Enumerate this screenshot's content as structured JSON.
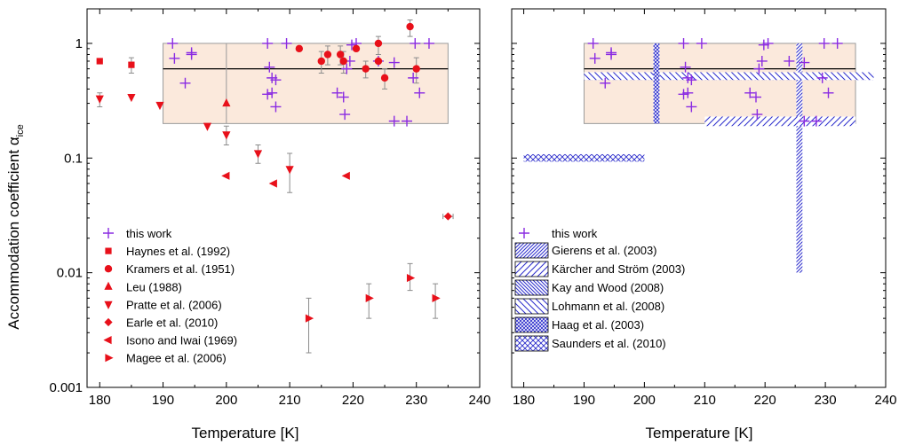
{
  "chart_data": [
    {
      "type": "scatter",
      "panel": "left",
      "xlabel": "Temperature [K]",
      "ylabel": "Accommodation coefficient α_ice",
      "ylabel_main": "Accommodation coefficient α",
      "ylabel_sub": "ice",
      "xlim": [
        178,
        240
      ],
      "ylim": [
        0.001,
        2
      ],
      "yscale": "log",
      "xticks": [
        "180",
        "190",
        "200",
        "210",
        "220",
        "230",
        "240"
      ],
      "yticks": [
        "0.001",
        "0.01",
        "0.1",
        "1"
      ],
      "grid": false,
      "legend_position": "lower-left",
      "this_work_range": {
        "x": [
          190,
          235
        ],
        "y": [
          0.2,
          1.0
        ],
        "median": 0.6,
        "color": "#fbe9dc"
      },
      "series": [
        {
          "name": "this work",
          "marker": "plus",
          "color": "#8a2be2",
          "points": [
            {
              "x": 191.5,
              "y": 1.0
            },
            {
              "x": 191.8,
              "y": 0.74
            },
            {
              "x": 194.5,
              "y": 0.83
            },
            {
              "x": 194.5,
              "y": 0.8
            },
            {
              "x": 193.5,
              "y": 0.45
            },
            {
              "x": 206.5,
              "y": 1.0
            },
            {
              "x": 206.5,
              "y": 0.36
            },
            {
              "x": 206.8,
              "y": 0.62
            },
            {
              "x": 207.2,
              "y": 0.5
            },
            {
              "x": 207.2,
              "y": 0.37
            },
            {
              "x": 207.8,
              "y": 0.48
            },
            {
              "x": 207.8,
              "y": 0.28
            },
            {
              "x": 209.5,
              "y": 1.0
            },
            {
              "x": 217.5,
              "y": 0.37
            },
            {
              "x": 218.5,
              "y": 0.34
            },
            {
              "x": 218.7,
              "y": 0.24
            },
            {
              "x": 219.0,
              "y": 0.6
            },
            {
              "x": 219.5,
              "y": 0.7
            },
            {
              "x": 219.8,
              "y": 0.97
            },
            {
              "x": 220.5,
              "y": 1.0
            },
            {
              "x": 224.0,
              "y": 0.7
            },
            {
              "x": 226.5,
              "y": 0.68
            },
            {
              "x": 226.5,
              "y": 0.21
            },
            {
              "x": 228.5,
              "y": 0.21
            },
            {
              "x": 229.5,
              "y": 0.5
            },
            {
              "x": 229.8,
              "y": 1.0
            },
            {
              "x": 230.5,
              "y": 0.37
            },
            {
              "x": 232.0,
              "y": 1.0
            }
          ]
        },
        {
          "name": "Haynes et al. (1992)",
          "marker": "square",
          "color": "#e8101a",
          "points": [
            {
              "x": 180.0,
              "y": 0.7
            },
            {
              "x": 185.0,
              "y": 0.65,
              "err": [
                0.55,
                0.75
              ]
            }
          ]
        },
        {
          "name": "Kramers et al. (1951)",
          "marker": "circle",
          "color": "#e8101a",
          "points": [
            {
              "x": 211.5,
              "y": 0.9
            },
            {
              "x": 215.0,
              "y": 0.7,
              "err": [
                0.55,
                0.85
              ]
            },
            {
              "x": 216.0,
              "y": 0.8,
              "err": [
                0.65,
                0.95
              ]
            },
            {
              "x": 218.0,
              "y": 0.8,
              "err": [
                0.65,
                0.95
              ]
            },
            {
              "x": 218.5,
              "y": 0.7,
              "err": [
                0.55,
                0.85
              ]
            },
            {
              "x": 220.5,
              "y": 0.9
            },
            {
              "x": 222.0,
              "y": 0.6,
              "err": [
                0.5,
                0.7
              ]
            },
            {
              "x": 224.0,
              "y": 1.0,
              "err": [
                0.8,
                1.15
              ]
            },
            {
              "x": 224.0,
              "y": 0.7
            },
            {
              "x": 225.0,
              "y": 0.5,
              "err": [
                0.4,
                0.6
              ]
            },
            {
              "x": 229.0,
              "y": 1.4,
              "err": [
                1.15,
                1.6
              ]
            },
            {
              "x": 230.0,
              "y": 0.6,
              "err": [
                0.45,
                0.75
              ]
            }
          ]
        },
        {
          "name": "Leu (1988)",
          "marker": "triangle-up",
          "color": "#e8101a",
          "points": [
            {
              "x": 200.0,
              "y": 0.3
            }
          ]
        },
        {
          "name": "Pratte et al. (2006)",
          "marker": "triangle-down",
          "color": "#e8101a",
          "points": [
            {
              "x": 180.0,
              "y": 0.33,
              "err": [
                0.28,
                0.37
              ]
            },
            {
              "x": 185.0,
              "y": 0.34
            },
            {
              "x": 189.5,
              "y": 0.29
            },
            {
              "x": 197.0,
              "y": 0.19
            },
            {
              "x": 200.0,
              "y": 0.16,
              "err": [
                0.13,
                0.19
              ]
            },
            {
              "x": 205.0,
              "y": 0.11,
              "err": [
                0.09,
                0.13
              ]
            },
            {
              "x": 210.0,
              "y": 0.08,
              "err": [
                0.05,
                0.11
              ]
            }
          ]
        },
        {
          "name": "Earle et al. (2010)",
          "marker": "diamond",
          "color": "#e8101a",
          "points": [
            {
              "x": 235.0,
              "y": 0.031,
              "errx": [
                234.2,
                235.8
              ]
            }
          ]
        },
        {
          "name": "Isono and Iwai (1969)",
          "marker": "triangle-left",
          "color": "#e8101a",
          "points": [
            {
              "x": 200.0,
              "y": 0.07
            },
            {
              "x": 207.5,
              "y": 0.06
            },
            {
              "x": 219.0,
              "y": 0.07
            }
          ]
        },
        {
          "name": "Magee et al. (2006)",
          "marker": "triangle-right",
          "color": "#e8101a",
          "points": [
            {
              "x": 213.0,
              "y": 0.004,
              "err": [
                0.002,
                0.006
              ]
            },
            {
              "x": 222.5,
              "y": 0.006,
              "err": [
                0.004,
                0.008
              ]
            },
            {
              "x": 229.0,
              "y": 0.009,
              "err": [
                0.007,
                0.012
              ]
            },
            {
              "x": 233.0,
              "y": 0.006,
              "err": [
                0.004,
                0.008
              ]
            }
          ]
        }
      ]
    },
    {
      "type": "scatter",
      "panel": "right",
      "xlabel": "Temperature [K]",
      "xlim": [
        178,
        240
      ],
      "ylim": [
        0.001,
        2
      ],
      "yscale": "log",
      "xticks": [
        "180",
        "190",
        "200",
        "210",
        "220",
        "230",
        "240"
      ],
      "grid": false,
      "legend_position": "lower-left",
      "this_work_range": {
        "x": [
          190,
          235
        ],
        "y": [
          0.2,
          1.0
        ],
        "median": 0.6,
        "color": "#fbe9dc"
      },
      "series": [
        {
          "name": "this work",
          "marker": "plus",
          "color": "#8a2be2",
          "points": [
            {
              "x": 191.5,
              "y": 1.0
            },
            {
              "x": 191.8,
              "y": 0.74
            },
            {
              "x": 194.5,
              "y": 0.83
            },
            {
              "x": 194.5,
              "y": 0.8
            },
            {
              "x": 193.5,
              "y": 0.45
            },
            {
              "x": 206.5,
              "y": 1.0
            },
            {
              "x": 206.5,
              "y": 0.36
            },
            {
              "x": 206.8,
              "y": 0.62
            },
            {
              "x": 207.2,
              "y": 0.5
            },
            {
              "x": 207.2,
              "y": 0.37
            },
            {
              "x": 207.8,
              "y": 0.48
            },
            {
              "x": 207.8,
              "y": 0.28
            },
            {
              "x": 209.5,
              "y": 1.0
            },
            {
              "x": 217.5,
              "y": 0.37
            },
            {
              "x": 218.5,
              "y": 0.34
            },
            {
              "x": 218.7,
              "y": 0.24
            },
            {
              "x": 219.0,
              "y": 0.6
            },
            {
              "x": 219.5,
              "y": 0.7
            },
            {
              "x": 219.8,
              "y": 0.97
            },
            {
              "x": 220.5,
              "y": 1.0
            },
            {
              "x": 224.0,
              "y": 0.7
            },
            {
              "x": 226.5,
              "y": 0.68
            },
            {
              "x": 226.5,
              "y": 0.21
            },
            {
              "x": 228.5,
              "y": 0.21
            },
            {
              "x": 229.5,
              "y": 0.5
            },
            {
              "x": 229.8,
              "y": 1.0
            },
            {
              "x": 230.5,
              "y": 0.37
            },
            {
              "x": 232.0,
              "y": 1.0
            }
          ]
        }
      ],
      "bands": [
        {
          "name": "Gierens et al. (2003)",
          "pattern": "diag-fwd-dense",
          "x": [
            225.2,
            226.2
          ],
          "y": [
            0.01,
            1.0
          ]
        },
        {
          "name": "Kärcher and Ström (2003)",
          "pattern": "diag-fwd",
          "x": [
            210.0,
            235.0
          ],
          "y": [
            0.19,
            0.23
          ]
        },
        {
          "name": "Kay and Wood (2008)",
          "pattern": "diag-back-dense",
          "x": [
            190.0,
            238.0
          ],
          "y": [
            0.48,
            0.56
          ]
        },
        {
          "name": "Lohmann et al. (2008)",
          "pattern": "diag-back",
          "x": [
            190.0,
            238.0
          ],
          "y": [
            0.48,
            0.56
          ]
        },
        {
          "name": "Haag et al. (2003)",
          "pattern": "crosshatch-dense",
          "x": [
            201.5,
            202.5
          ],
          "y": [
            0.2,
            1.0
          ]
        },
        {
          "name": "Saunders et al. (2010)",
          "pattern": "crosshatch",
          "x": [
            180.0,
            200.0
          ],
          "y": [
            0.093,
            0.108
          ]
        }
      ]
    }
  ]
}
